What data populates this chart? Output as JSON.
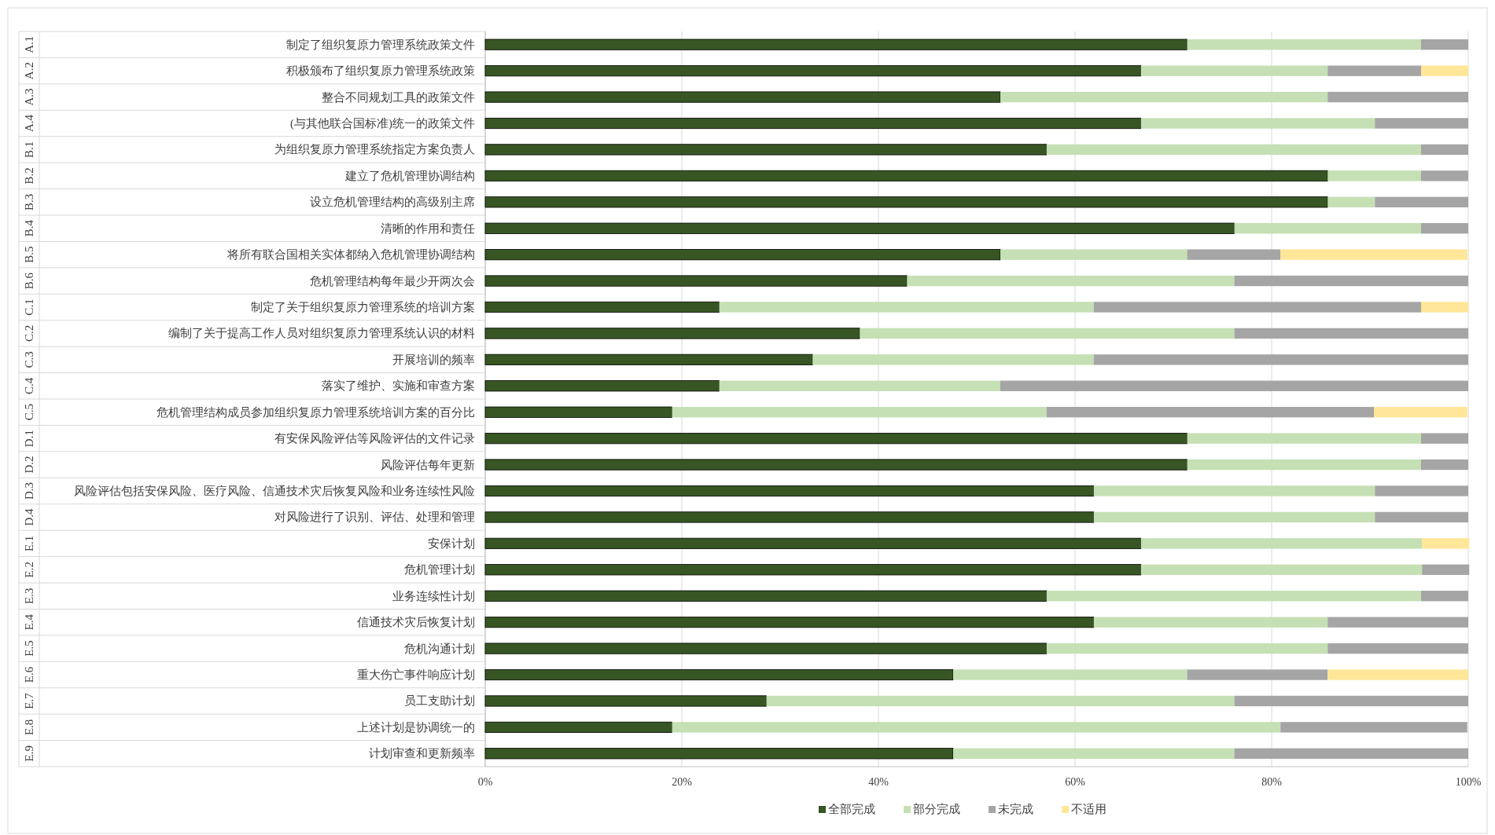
{
  "chart_data": {
    "type": "bar",
    "orientation": "horizontal",
    "stacked": true,
    "categories": [
      "制定了组织复原力管理系统政策文件",
      "积极颁布了组织复原力管理系统政策",
      "整合不同规划工具的政策文件",
      "(与其他联合国标准)统一的政策文件",
      "为组织复原力管理系统指定方案负责人",
      "建立了危机管理协调结构",
      "设立危机管理结构的高级别主席",
      "清晰的作用和责任",
      "将所有联合国相关实体都纳入危机管理协调结构",
      "危机管理结构每年最少开两次会",
      "制定了关于组织复原力管理系统的培训方案",
      "编制了关于提高工作人员对组织复原力管理系统认识的材料",
      "开展培训的频率",
      "落实了维护、实施和审查方案",
      "危机管理结构成员参加组织复原力管理系统培训方案的百分比",
      "有安保风险评估等风险评估的文件记录",
      "风险评估每年更新",
      "风险评估包括安保风险、医疗风险、信通技术灾后恢复风险和业务连续性风险",
      "对风险进行了识别、评估、处理和管理",
      "安保计划",
      "危机管理计划",
      "业务连续性计划",
      "信通技术灾后恢复计划",
      "危机沟通计划",
      "重大伤亡事件响应计划",
      "员工支助计划",
      "上述计划是协调统一的",
      "计划审查和更新频率"
    ],
    "y2_categories": [
      "A.1",
      "A.2",
      "A.3",
      "A.4",
      "B.1",
      "B.2",
      "B.3",
      "B.4",
      "B.5",
      "B.6",
      "C.1",
      "C.2",
      "C.3",
      "C.4",
      "C.5",
      "D.1",
      "D.2",
      "D.3",
      "D.4",
      "E.1",
      "E.2",
      "E.3",
      "E.4",
      "E.5",
      "E.6",
      "E.7",
      "E.8",
      "E.9"
    ],
    "series": [
      {
        "name": "全部完成",
        "color": "#375623",
        "values": [
          71.4,
          66.7,
          52.4,
          66.7,
          57.1,
          85.7,
          85.7,
          76.2,
          52.4,
          42.9,
          23.8,
          38.1,
          33.3,
          23.8,
          19.0,
          71.4,
          71.4,
          61.9,
          61.9,
          66.7,
          66.7,
          57.1,
          61.9,
          57.1,
          47.6,
          28.6,
          19.0,
          47.6
        ]
      },
      {
        "name": "部分完成",
        "color": "#c5e0b4",
        "values": [
          23.8,
          19.0,
          33.3,
          23.8,
          38.1,
          9.5,
          4.8,
          19.0,
          19.0,
          33.3,
          38.1,
          38.1,
          28.6,
          28.6,
          38.1,
          23.8,
          23.8,
          28.6,
          28.6,
          28.6,
          28.6,
          38.1,
          23.8,
          28.6,
          23.8,
          47.6,
          61.9,
          28.6
        ]
      },
      {
        "name": "未完成",
        "color": "#a5a5a5",
        "values": [
          4.8,
          9.5,
          14.3,
          9.5,
          4.8,
          4.8,
          9.5,
          4.8,
          9.5,
          23.8,
          33.3,
          23.8,
          38.1,
          47.6,
          33.3,
          4.8,
          4.8,
          9.5,
          9.5,
          0,
          4.8,
          4.8,
          14.3,
          14.3,
          14.3,
          23.8,
          19.0,
          23.8
        ]
      },
      {
        "name": "不适用",
        "color": "#ffe699",
        "values": [
          0,
          4.8,
          0,
          0,
          0,
          0,
          0,
          0,
          19.0,
          0,
          4.8,
          0,
          0,
          0,
          9.5,
          0,
          0,
          0,
          0,
          4.8,
          0,
          0,
          0,
          0,
          14.3,
          0,
          0,
          0
        ]
      }
    ],
    "xlim": [
      0,
      100
    ],
    "xticks": [
      {
        "value": 0,
        "label": "0%"
      },
      {
        "value": 20,
        "label": "20%"
      },
      {
        "value": 40,
        "label": "40%"
      },
      {
        "value": 60,
        "label": "60%"
      },
      {
        "value": 80,
        "label": "80%"
      },
      {
        "value": 100,
        "label": "100%"
      }
    ],
    "grid": "x",
    "legend": "bottom"
  }
}
